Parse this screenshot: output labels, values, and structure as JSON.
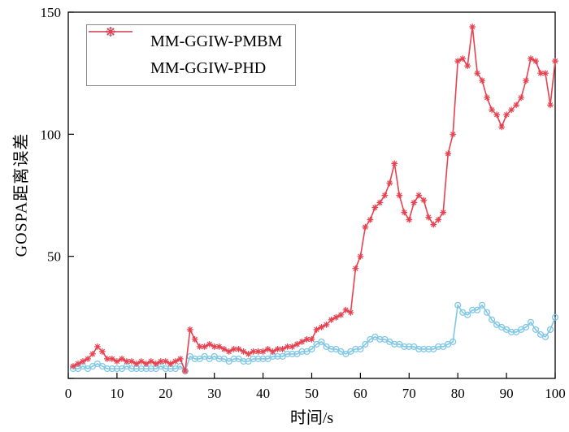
{
  "chart_data": {
    "type": "line",
    "title": "",
    "xlabel": "时间/s",
    "ylabel": "GOSPA距离误差",
    "xlim": [
      0,
      100
    ],
    "ylim": [
      0,
      150
    ],
    "xticks": [
      0,
      10,
      20,
      30,
      40,
      50,
      60,
      70,
      80,
      90,
      100
    ],
    "yticks": [
      0,
      50,
      100,
      150
    ],
    "grid": false,
    "legend_position": "top-left",
    "x": [
      1,
      2,
      3,
      4,
      5,
      6,
      7,
      8,
      9,
      10,
      11,
      12,
      13,
      14,
      15,
      16,
      17,
      18,
      19,
      20,
      21,
      22,
      23,
      24,
      25,
      26,
      27,
      28,
      29,
      30,
      31,
      32,
      33,
      34,
      35,
      36,
      37,
      38,
      39,
      40,
      41,
      42,
      43,
      44,
      45,
      46,
      47,
      48,
      49,
      50,
      51,
      52,
      53,
      54,
      55,
      56,
      57,
      58,
      59,
      60,
      61,
      62,
      63,
      64,
      65,
      66,
      67,
      68,
      69,
      70,
      71,
      72,
      73,
      74,
      75,
      76,
      77,
      78,
      79,
      80,
      81,
      82,
      83,
      84,
      85,
      86,
      87,
      88,
      89,
      90,
      91,
      92,
      93,
      94,
      95,
      96,
      97,
      98,
      99,
      100
    ],
    "series": [
      {
        "name": "MM-GGIW-PMBM",
        "color": "#7fc7e6",
        "marker": "circle",
        "values": [
          4,
          4,
          5,
          4,
          5,
          6,
          5,
          4,
          4,
          4,
          4,
          5,
          4,
          4,
          4,
          4,
          4,
          4,
          5,
          4,
          4,
          4,
          5,
          3,
          9,
          8,
          8,
          9,
          8,
          9,
          8,
          8,
          7,
          8,
          8,
          7,
          7,
          8,
          8,
          8,
          8,
          9,
          9,
          9,
          10,
          10,
          10,
          11,
          11,
          12,
          14,
          15,
          13,
          12,
          12,
          11,
          10,
          11,
          12,
          12,
          14,
          16,
          17,
          16,
          16,
          15,
          14,
          14,
          13,
          13,
          13,
          12,
          12,
          12,
          12,
          13,
          13,
          14,
          15,
          30,
          27,
          26,
          28,
          28,
          30,
          27,
          24,
          22,
          21,
          20,
          19,
          19,
          20,
          21,
          23,
          20,
          18,
          17,
          20,
          25
        ]
      },
      {
        "name": "MM-GGIW-PHD",
        "color": "#e8414f",
        "marker": "asterisk",
        "values": [
          5,
          6,
          7,
          8,
          10,
          13,
          11,
          8,
          8,
          7,
          8,
          7,
          7,
          6,
          7,
          6,
          7,
          6,
          7,
          7,
          6,
          7,
          8,
          3,
          20,
          16,
          13,
          13,
          14,
          13,
          13,
          12,
          11,
          12,
          12,
          11,
          10,
          11,
          11,
          11,
          12,
          11,
          12,
          12,
          13,
          13,
          14,
          15,
          16,
          16,
          20,
          21,
          22,
          24,
          25,
          26,
          28,
          27,
          45,
          50,
          62,
          65,
          70,
          72,
          75,
          80,
          88,
          75,
          68,
          65,
          72,
          75,
          73,
          66,
          63,
          65,
          68,
          92,
          100,
          130,
          131,
          128,
          144,
          125,
          122,
          115,
          110,
          108,
          103,
          108,
          110,
          112,
          115,
          122,
          131,
          130,
          125,
          125,
          112,
          130
        ]
      }
    ]
  },
  "colors": {
    "axis": "#000000",
    "pmbm_blue": "#7fc7e6",
    "phd_red": "#e8414f"
  }
}
